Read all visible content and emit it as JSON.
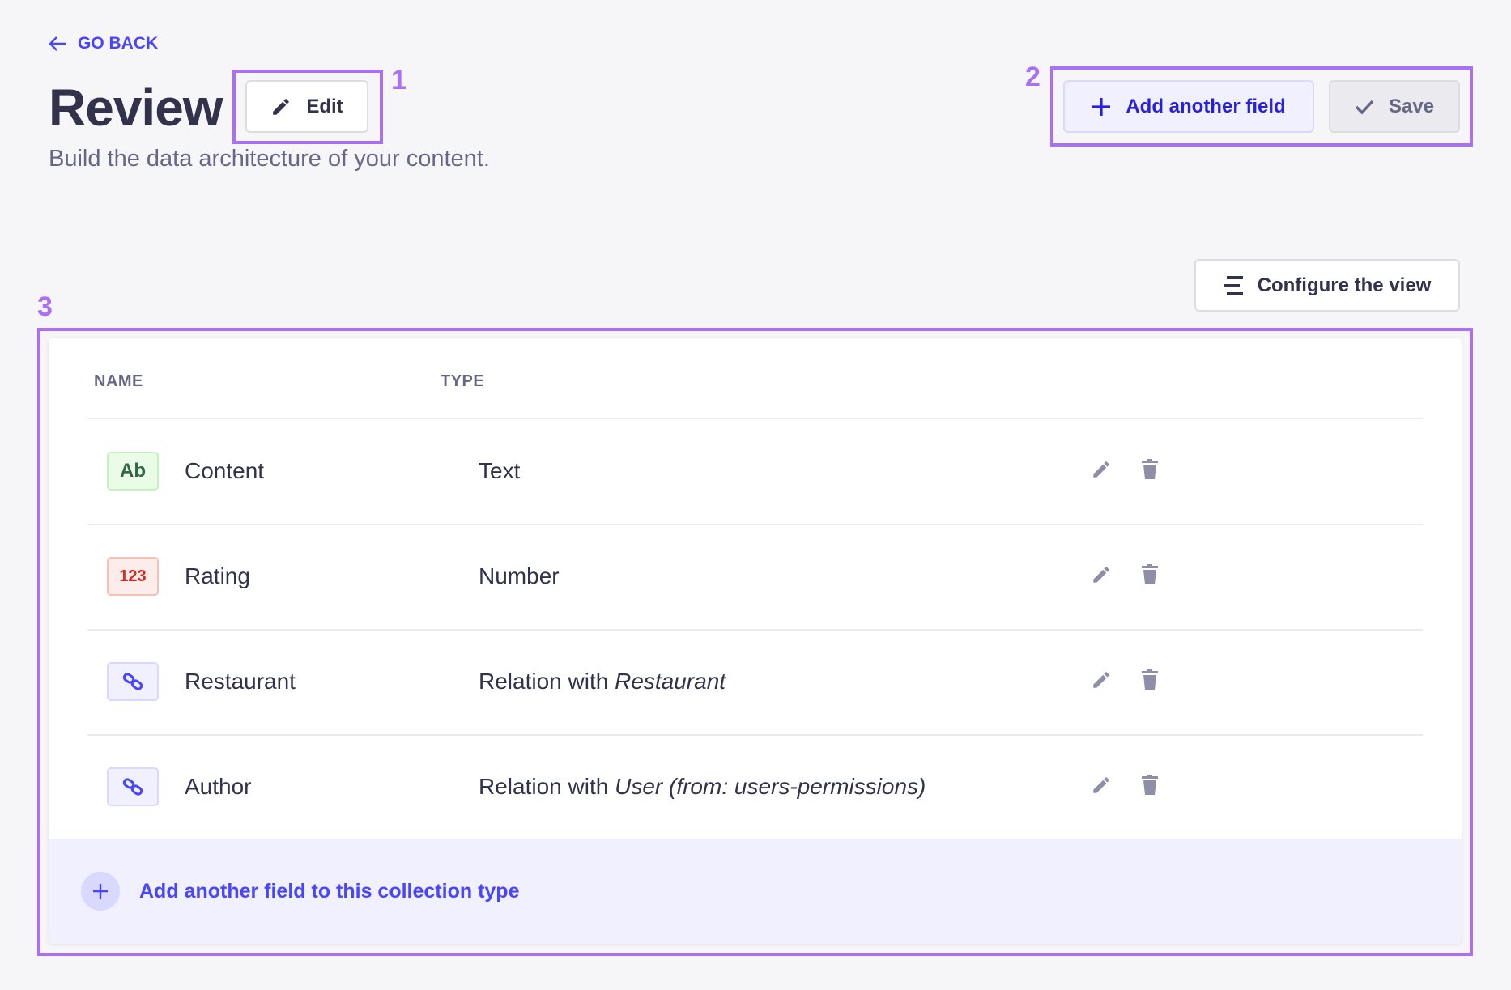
{
  "header": {
    "go_back": "GO BACK",
    "title": "Review",
    "subtitle": "Build the data architecture of your content.",
    "edit_label": "Edit",
    "add_field_label": "Add another field",
    "save_label": "Save",
    "configure_label": "Configure the view"
  },
  "annotations": [
    "1",
    "2",
    "3"
  ],
  "table": {
    "columns": [
      "NAME",
      "TYPE"
    ],
    "rows": [
      {
        "badge": "Ab",
        "badge_kind": "text",
        "name": "Content",
        "type": "Text",
        "type_target": ""
      },
      {
        "badge": "123",
        "badge_kind": "number",
        "name": "Rating",
        "type": "Number",
        "type_target": ""
      },
      {
        "badge": "",
        "badge_kind": "relation",
        "name": "Restaurant",
        "type": "Relation with ",
        "type_target": "Restaurant"
      },
      {
        "badge": "",
        "badge_kind": "relation",
        "name": "Author",
        "type": "Relation with ",
        "type_target": "User (from: users-permissions)"
      }
    ],
    "footer_label": "Add another field to this collection type"
  },
  "colors": {
    "primary": "#4945ff",
    "annotation": "#a970f5",
    "text": "#32324d",
    "muted": "#666687",
    "icon": "#8e8ea9"
  }
}
